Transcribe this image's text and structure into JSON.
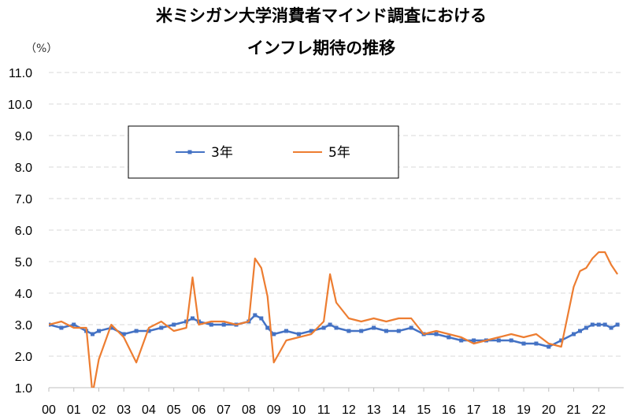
{
  "chart_data": {
    "type": "line",
    "title_lines": [
      "米ミシガン大学消費者マインド調査における",
      "インフレ期待の推移"
    ],
    "unit_label": "（%）",
    "ylim": [
      1.0,
      11.0
    ],
    "y_ticks": [
      "1.0",
      "2.0",
      "3.0",
      "4.0",
      "5.0",
      "6.0",
      "7.0",
      "8.0",
      "9.0",
      "10.0",
      "11.0"
    ],
    "x_ticks": [
      "00",
      "01",
      "02",
      "03",
      "04",
      "05",
      "06",
      "07",
      "08",
      "09",
      "10",
      "11",
      "12",
      "13",
      "14",
      "15",
      "16",
      "17",
      "18",
      "19",
      "20",
      "21",
      "22"
    ],
    "grid": true,
    "legend_position": "top-left",
    "x": [
      2000.0,
      2000.5,
      2001.0,
      2001.5,
      2001.75,
      2002.0,
      2002.5,
      2003.0,
      2003.5,
      2004.0,
      2004.5,
      2005.0,
      2005.5,
      2005.75,
      2006.0,
      2006.5,
      2007.0,
      2007.5,
      2008.0,
      2008.25,
      2008.5,
      2008.75,
      2009.0,
      2009.5,
      2010.0,
      2010.5,
      2011.0,
      2011.25,
      2011.5,
      2012.0,
      2012.5,
      2013.0,
      2013.5,
      2014.0,
      2014.5,
      2015.0,
      2015.5,
      2016.0,
      2016.5,
      2017.0,
      2017.5,
      2018.0,
      2018.5,
      2019.0,
      2019.5,
      2020.0,
      2020.5,
      2021.0,
      2021.25,
      2021.5,
      2021.75,
      2022.0,
      2022.25,
      2022.5,
      2022.75
    ],
    "series": [
      {
        "name": "3年",
        "color": "#4472C4",
        "marker": "square",
        "values": [
          3.0,
          2.9,
          3.0,
          2.8,
          2.7,
          2.8,
          2.9,
          2.7,
          2.8,
          2.8,
          2.9,
          3.0,
          3.1,
          3.2,
          3.1,
          3.0,
          3.0,
          3.0,
          3.1,
          3.3,
          3.2,
          2.9,
          2.7,
          2.8,
          2.7,
          2.8,
          2.9,
          3.0,
          2.9,
          2.8,
          2.8,
          2.9,
          2.8,
          2.8,
          2.9,
          2.7,
          2.7,
          2.6,
          2.5,
          2.5,
          2.5,
          2.5,
          2.5,
          2.4,
          2.4,
          2.3,
          2.5,
          2.7,
          2.8,
          2.9,
          3.0,
          3.0,
          3.0,
          2.9,
          3.0
        ]
      },
      {
        "name": "5年",
        "color": "#ED7D31",
        "values": [
          3.0,
          3.1,
          2.9,
          2.9,
          0.8,
          1.9,
          3.0,
          2.6,
          1.8,
          2.9,
          3.1,
          2.8,
          2.9,
          4.5,
          3.0,
          3.1,
          3.1,
          3.0,
          3.1,
          5.1,
          4.8,
          3.9,
          1.8,
          2.5,
          2.6,
          2.7,
          3.1,
          4.6,
          3.7,
          3.2,
          3.1,
          3.2,
          3.1,
          3.2,
          3.2,
          2.7,
          2.8,
          2.7,
          2.6,
          2.4,
          2.5,
          2.6,
          2.7,
          2.6,
          2.7,
          2.4,
          2.3,
          4.2,
          4.7,
          4.8,
          5.1,
          5.3,
          5.3,
          4.9,
          4.6
        ]
      }
    ]
  }
}
